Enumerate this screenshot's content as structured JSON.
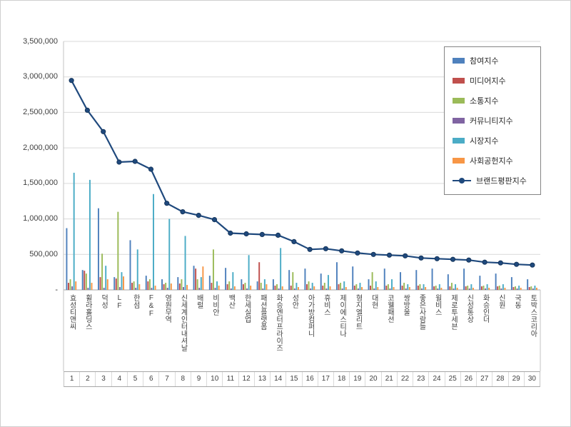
{
  "page": {
    "background": "#ffffff",
    "border_color": "#cfcfcf"
  },
  "chart_data": {
    "type": "bar",
    "title": "",
    "grid": true,
    "legend_position": "top-right",
    "categories": [
      "효성티앤씨",
      "휠라홀딩스",
      "덕성",
      "LF",
      "한섬",
      "F&F",
      "영원무역",
      "신세계인터내셔날",
      "배럴",
      "비비안",
      "백산",
      "한세실업",
      "패션플랫폼",
      "화승엔터프라이즈",
      "성안",
      "아가방컴퍼니",
      "휴비스",
      "제이에스티나",
      "형지엘리트",
      "대현",
      "코웰패션",
      "쌍방울",
      "좋은사람들",
      "윌비스",
      "제로투세븐",
      "신성통상",
      "화승인더",
      "신원",
      "국동",
      "토박스코리아"
    ],
    "category_numbers": [
      "1",
      "2",
      "3",
      "4",
      "5",
      "6",
      "7",
      "8",
      "9",
      "10",
      "11",
      "12",
      "13",
      "14",
      "15",
      "16",
      "17",
      "18",
      "19",
      "20",
      "21",
      "22",
      "23",
      "24",
      "25",
      "26",
      "27",
      "28",
      "29",
      "30"
    ],
    "y_axis": {
      "min": 0,
      "max": 3500000,
      "tick_interval": 500000,
      "tick_labels": [
        "-",
        "500,000",
        "1,000,000",
        "1,500,000",
        "2,000,000",
        "2,500,000",
        "3,000,000",
        "3,500,000"
      ]
    },
    "series": [
      {
        "name": "참여지수",
        "color": "#4F81BD",
        "values": [
          870000,
          280000,
          1150000,
          180000,
          700000,
          200000,
          150000,
          180000,
          340000,
          200000,
          310000,
          150000,
          120000,
          150000,
          280000,
          300000,
          230000,
          390000,
          330000,
          150000,
          300000,
          250000,
          280000,
          300000,
          220000,
          300000,
          200000,
          230000,
          180000,
          150000
        ]
      },
      {
        "name": "미디어지수",
        "color": "#C0504D",
        "values": [
          100000,
          270000,
          180000,
          160000,
          100000,
          120000,
          80000,
          90000,
          300000,
          100000,
          80000,
          80000,
          390000,
          60000,
          60000,
          80000,
          60000,
          80000,
          60000,
          60000,
          60000,
          60000,
          60000,
          50000,
          50000,
          50000,
          50000,
          50000,
          40000,
          40000
        ]
      },
      {
        "name": "소통지수",
        "color": "#9BBB59",
        "values": [
          150000,
          230000,
          510000,
          1100000,
          120000,
          150000,
          100000,
          150000,
          150000,
          570000,
          120000,
          100000,
          100000,
          80000,
          250000,
          120000,
          100000,
          100000,
          80000,
          250000,
          80000,
          100000,
          80000,
          60000,
          100000,
          60000,
          60000,
          60000,
          50000,
          50000
        ]
      },
      {
        "name": "커뮤니티지수",
        "color": "#8064A2",
        "values": [
          50000,
          30000,
          30000,
          40000,
          30000,
          30000,
          30000,
          40000,
          30000,
          30000,
          20000,
          20000,
          20000,
          20000,
          20000,
          20000,
          20000,
          20000,
          20000,
          20000,
          20000,
          20000,
          20000,
          20000,
          20000,
          20000,
          20000,
          20000,
          20000,
          20000
        ]
      },
      {
        "name": "시장지수",
        "color": "#4BACC6",
        "values": [
          1650000,
          1550000,
          340000,
          250000,
          570000,
          1350000,
          1000000,
          760000,
          180000,
          120000,
          250000,
          490000,
          150000,
          590000,
          100000,
          100000,
          210000,
          120000,
          100000,
          120000,
          150000,
          80000,
          80000,
          80000,
          80000,
          80000,
          80000,
          80000,
          60000,
          60000
        ]
      },
      {
        "name": "사회공헌지수",
        "color": "#F79646",
        "values": [
          120000,
          100000,
          150000,
          190000,
          80000,
          60000,
          90000,
          70000,
          330000,
          60000,
          50000,
          60000,
          80000,
          50000,
          40000,
          50000,
          50000,
          40000,
          40000,
          40000,
          40000,
          40000,
          40000,
          30000,
          30000,
          30000,
          30000,
          30000,
          30000,
          30000
        ]
      }
    ],
    "line_series": {
      "name": "브랜드평판지수",
      "color": "#1F497D",
      "marker_edge": "#16365C",
      "values": [
        2950000,
        2530000,
        2230000,
        1800000,
        1810000,
        1700000,
        1220000,
        1100000,
        1050000,
        990000,
        800000,
        790000,
        780000,
        770000,
        680000,
        570000,
        580000,
        550000,
        520000,
        500000,
        490000,
        480000,
        450000,
        440000,
        430000,
        420000,
        390000,
        380000,
        360000,
        350000
      ]
    },
    "colors": {
      "gridline": "#d9d9d9",
      "axis": "#a6a6a6",
      "axis_light": "#c3c3c3"
    }
  }
}
